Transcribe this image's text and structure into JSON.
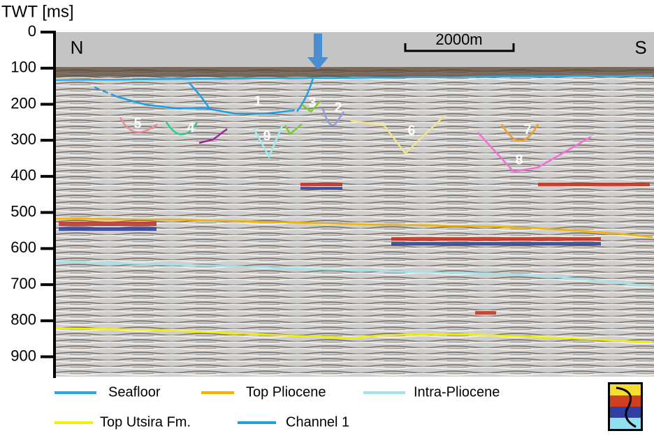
{
  "chart_data": {
    "type": "seismic-section",
    "y_label": "TWT [ms]",
    "ylim": [
      0,
      955
    ],
    "yticks": [
      0,
      100,
      200,
      300,
      400,
      500,
      600,
      700,
      800,
      900
    ],
    "categories": [
      null,
      null,
      null,
      null,
      null,
      null,
      null,
      null,
      null,
      null,
      null,
      null,
      null,
      null,
      null,
      null,
      null,
      null,
      null,
      null,
      null
    ],
    "series": [
      {
        "name": "Seafloor",
        "color": "#29a8e0",
        "values": [
          133,
          132,
          132,
          131,
          130,
          130,
          129,
          128,
          128,
          127,
          127,
          126,
          125,
          125,
          124,
          123,
          123,
          122,
          121,
          121,
          120
        ]
      },
      {
        "name": "Top Pliocene",
        "color": "#f0b400",
        "values": [
          517,
          517,
          518,
          519,
          520,
          522,
          524,
          526,
          528,
          530,
          532,
          534,
          535,
          537,
          538,
          540,
          543,
          548,
          553,
          560,
          568
        ]
      },
      {
        "name": "Intra-Pliocene",
        "color": "#9ee6ee",
        "values": [
          637,
          639,
          641,
          643,
          645,
          647,
          650,
          652,
          655,
          658,
          660,
          662,
          665,
          667,
          668,
          670,
          675,
          680,
          688,
          696,
          705
        ]
      },
      {
        "name": "Top Utsira Fm.",
        "color": "#f0f000",
        "values": [
          821,
          822,
          823,
          825,
          828,
          832,
          835,
          838,
          842,
          845,
          848,
          840,
          838,
          837,
          838,
          842,
          845,
          848,
          852,
          856,
          860
        ]
      },
      {
        "name": "Channel 1",
        "color": "#1f9fe0",
        "values": [
          null,
          null,
          178,
          201,
          211,
          211,
          226,
          226,
          217,
          null,
          null,
          null,
          null,
          null,
          null,
          null,
          null,
          null,
          null,
          null,
          null
        ]
      }
    ],
    "annotations": [
      "N",
      "S",
      "2000m",
      "1",
      "2",
      "3",
      "4",
      "5",
      "6",
      "7",
      "8",
      "9"
    ]
  }
}
